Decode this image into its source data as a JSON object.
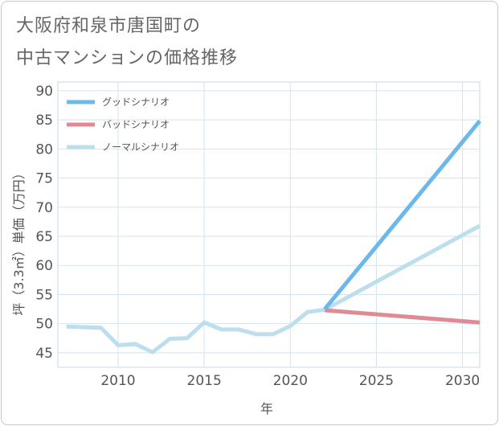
{
  "title_line1": "大阪府和泉市唐国町の",
  "title_line2": "中古マンションの価格推移",
  "chart_data": {
    "type": "line",
    "title": "大阪府和泉市唐国町の中古マンションの価格推移",
    "xlabel": "年",
    "ylabel": "坪（3.3㎡）単価（万円）",
    "xlim": [
      2006.5,
      2031
    ],
    "ylim": [
      42.5,
      91.5
    ],
    "x_ticks": [
      2010,
      2015,
      2020,
      2025,
      2030
    ],
    "y_ticks": [
      45,
      50,
      55,
      60,
      65,
      70,
      75,
      80,
      85,
      90
    ],
    "grid": true,
    "legend_position": "top-left",
    "series": [
      {
        "name": "グッドシナリオ",
        "color": "#6cb8ea",
        "width": 5,
        "x": [
          2022,
          2031
        ],
        "y": [
          52.5,
          84.8
        ]
      },
      {
        "name": "バッドシナリオ",
        "color": "#de8b94",
        "width": 5,
        "x": [
          2022,
          2031
        ],
        "y": [
          52.3,
          50.2
        ]
      },
      {
        "name": "ノーマルシナリオ",
        "color": "#bcdeed",
        "width": 5,
        "x": [
          2007,
          2008,
          2009,
          2010,
          2011,
          2012,
          2013,
          2014,
          2015,
          2016,
          2017,
          2018,
          2019,
          2020,
          2021,
          2022,
          2031
        ],
        "y": [
          49.5,
          49.4,
          49.3,
          46.3,
          46.5,
          45.1,
          47.4,
          47.5,
          50.2,
          49.0,
          49.0,
          48.2,
          48.2,
          49.6,
          52.0,
          52.4,
          66.8
        ]
      }
    ]
  }
}
